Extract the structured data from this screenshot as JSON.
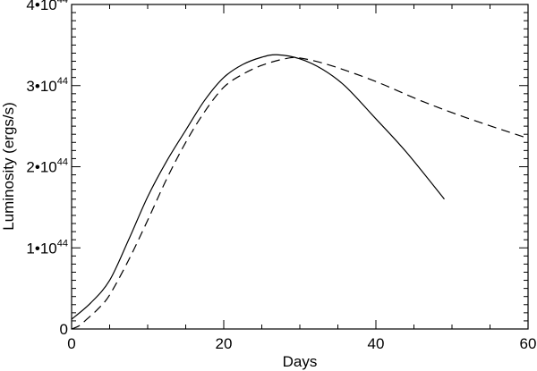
{
  "chart_data": {
    "type": "line",
    "title": "",
    "xlabel": "Days",
    "ylabel": "Luminosity (ergs/s)",
    "xlim": [
      0,
      60
    ],
    "ylim": [
      0,
      4e+44
    ],
    "grid": false,
    "x_ticks": [
      {
        "value": 0,
        "label": "0"
      },
      {
        "value": 20,
        "label": "20"
      },
      {
        "value": 40,
        "label": "40"
      },
      {
        "value": 60,
        "label": "60"
      }
    ],
    "y_ticks": [
      {
        "value": 0,
        "mantissa": "0",
        "exponent": ""
      },
      {
        "value": 1e+44,
        "mantissa": "1•10",
        "exponent": "44"
      },
      {
        "value": 2e+44,
        "mantissa": "2•10",
        "exponent": "44"
      },
      {
        "value": 3e+44,
        "mantissa": "3•10",
        "exponent": "44"
      },
      {
        "value": 4e+44,
        "mantissa": "4•10",
        "exponent": "44"
      }
    ],
    "y_unit_scale": 1e+44,
    "series": [
      {
        "style": "solid",
        "color": "#000000",
        "x": [
          0,
          2.5,
          5,
          7.5,
          10,
          12.5,
          15,
          17.5,
          20,
          22.5,
          25,
          27,
          30,
          33,
          36,
          40,
          44,
          49
        ],
        "y": [
          0.12,
          0.32,
          0.6,
          1.1,
          1.63,
          2.07,
          2.45,
          2.82,
          3.1,
          3.26,
          3.35,
          3.38,
          3.33,
          3.2,
          2.99,
          2.59,
          2.18,
          1.6
        ]
      },
      {
        "style": "dashed",
        "color": "#000000",
        "x": [
          0,
          1,
          2,
          3.5,
          5,
          7.5,
          10,
          12.5,
          15,
          17.5,
          20,
          22.5,
          25,
          28,
          30,
          34,
          40,
          46,
          52,
          60
        ],
        "y": [
          0,
          0.04,
          0.12,
          0.25,
          0.42,
          0.85,
          1.34,
          1.85,
          2.3,
          2.68,
          2.98,
          3.14,
          3.25,
          3.33,
          3.34,
          3.25,
          3.05,
          2.81,
          2.6,
          2.35
        ]
      }
    ]
  }
}
